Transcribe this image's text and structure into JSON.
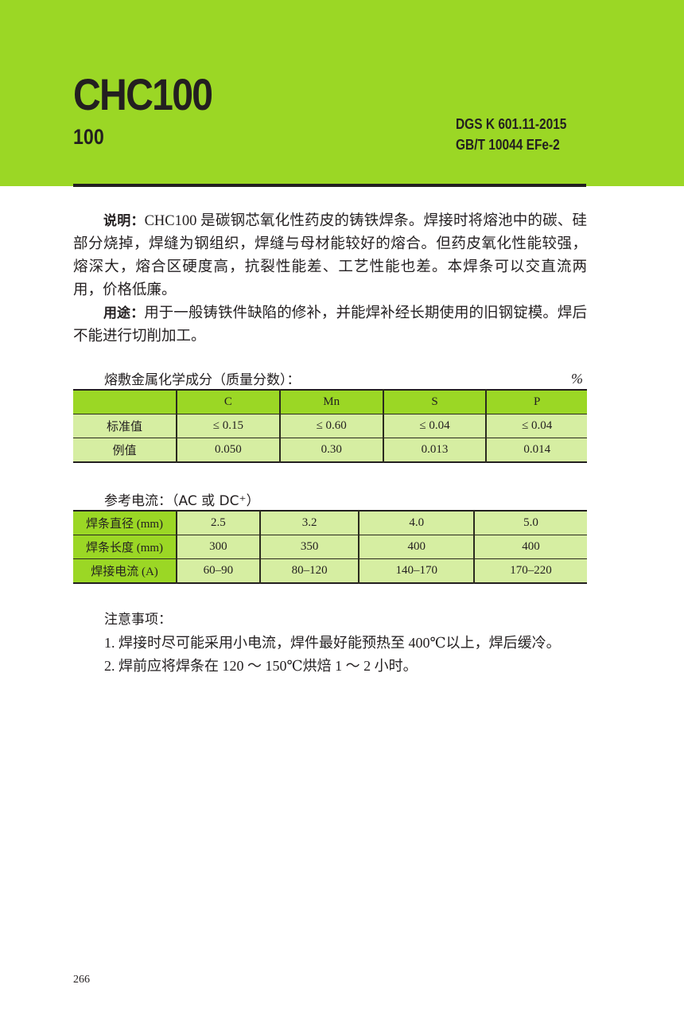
{
  "header": {
    "title": "CHC100",
    "subtitle": "100",
    "standards": [
      "DGS K 601.11-2015",
      "GB/T 10044 EFe-2"
    ],
    "bg_color": "#9bd725"
  },
  "description": {
    "label": "说明：",
    "text": "CHC100 是碳钢芯氧化性药皮的铸铁焊条。焊接时将熔池中的碳、硅部分烧掉，焊缝为钢组织，焊缝与母材能较好的熔合。但药皮氧化性能较强，熔深大，熔合区硬度高，抗裂性能差、工艺性能也差。本焊条可以交直流两用，价格低廉。"
  },
  "usage": {
    "label": "用途：",
    "text": "用于一般铸铁件缺陷的修补，并能焊补经长期使用的旧钢锭模。焊后不能进行切削加工。"
  },
  "composition": {
    "title": "熔敷金属化学成分（质量分数）：",
    "unit": "%",
    "headers": [
      "",
      "C",
      "Mn",
      "S",
      "P"
    ],
    "rows": [
      [
        "标准值",
        "≤ 0.15",
        "≤ 0.60",
        "≤ 0.04",
        "≤ 0.04"
      ],
      [
        "例值",
        "0.050",
        "0.30",
        "0.013",
        "0.014"
      ]
    ]
  },
  "current": {
    "title": "参考电流：（AC 或 DC⁺）",
    "rows": [
      [
        "焊条直径 (mm)",
        "2.5",
        "3.2",
        "4.0",
        "5.0"
      ],
      [
        "焊条长度 (mm)",
        "300",
        "350",
        "400",
        "400"
      ],
      [
        "焊接电流 (A)",
        "60–90",
        "80–120",
        "140–170",
        "170–220"
      ]
    ]
  },
  "notes": {
    "title": "注意事项：",
    "items": [
      "1. 焊接时尽可能采用小电流，焊件最好能预热至 400℃以上，焊后缓冷。",
      "2. 焊前应将焊条在 120 ～ 150℃烘焙 1 ～ 2 小时。"
    ]
  },
  "page_number": "266"
}
